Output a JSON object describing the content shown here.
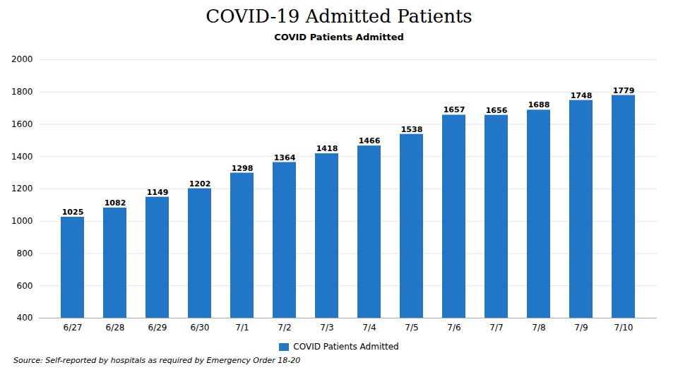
{
  "chart_data": {
    "type": "bar",
    "title": "COVID-19 Admitted Patients",
    "subtitle": "COVID Patients Admitted",
    "categories": [
      "6/27",
      "6/28",
      "6/29",
      "6/30",
      "7/1",
      "7/2",
      "7/3",
      "7/4",
      "7/5",
      "7/6",
      "7/7",
      "7/8",
      "7/9",
      "7/10"
    ],
    "series": [
      {
        "name": "COVID Patients Admitted",
        "color": "#2176C7",
        "values": [
          1025,
          1082,
          1149,
          1202,
          1298,
          1364,
          1418,
          1466,
          1538,
          1657,
          1656,
          1688,
          1748,
          1779
        ]
      }
    ],
    "ylim": [
      400,
      2000
    ],
    "yticks": [
      400,
      600,
      800,
      1000,
      1200,
      1400,
      1600,
      1800,
      2000
    ],
    "grid": true,
    "legend": "bottom",
    "data_labels": true,
    "annotations": [
      "Source: Self-reported by hospitals as required by Emergency Order 18-20"
    ]
  }
}
